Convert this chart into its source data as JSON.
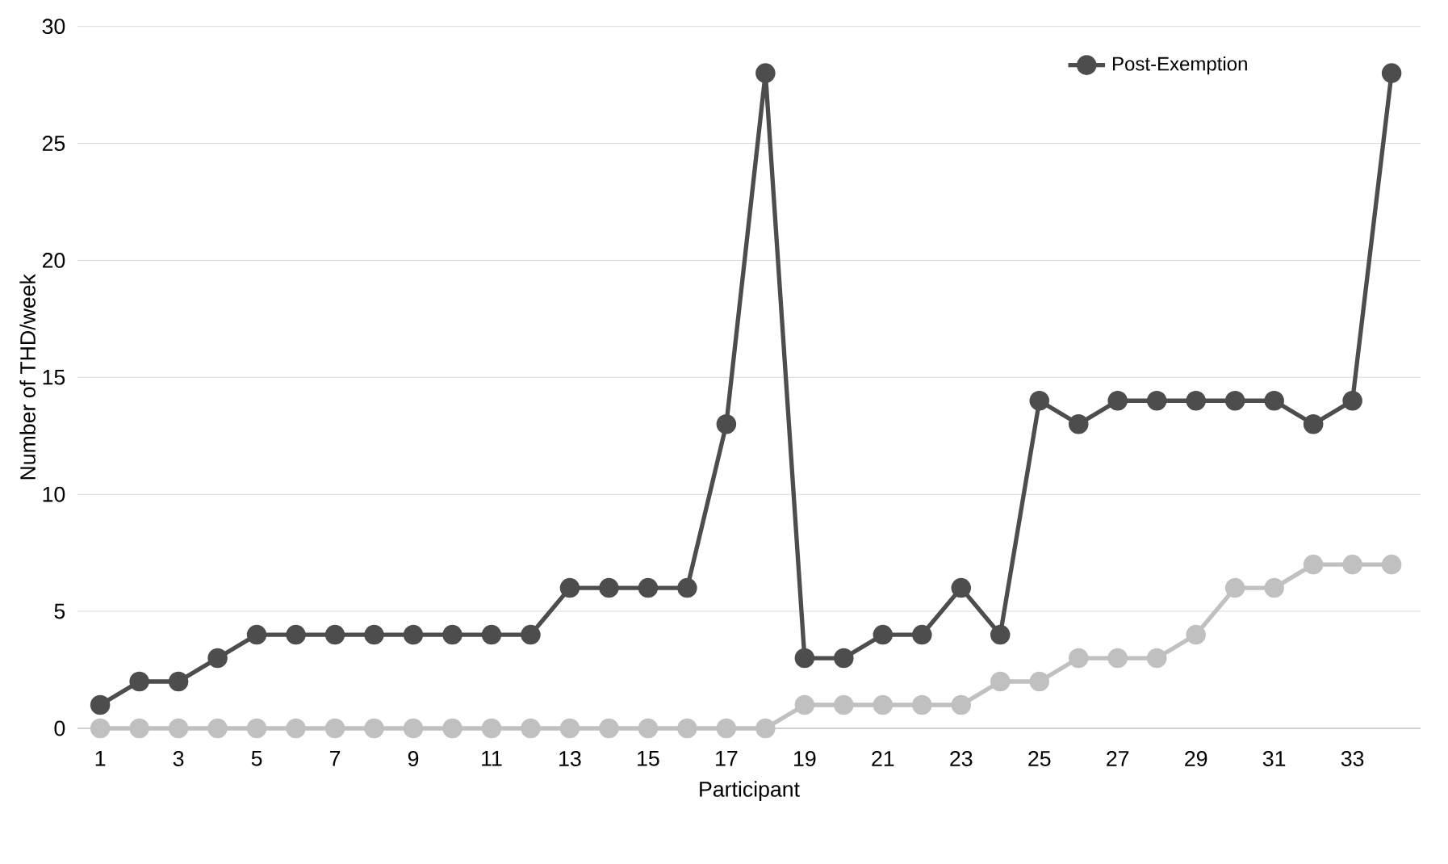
{
  "chart_data": {
    "type": "line",
    "xlabel": "Participant",
    "ylabel": "Number of THD/week",
    "categories": [
      "1",
      null,
      "3",
      null,
      "5",
      null,
      "7",
      null,
      "9",
      null,
      "11",
      null,
      "13",
      null,
      "15",
      null,
      "17",
      null,
      "19",
      null,
      "21",
      null,
      "23",
      null,
      "25",
      null,
      "27",
      null,
      "29",
      null,
      "31",
      null,
      "33",
      null
    ],
    "series": [
      {
        "name": "Post-Exemption",
        "color": "#4d4d4d",
        "values": [
          1,
          2,
          2,
          3,
          4,
          4,
          4,
          4,
          4,
          4,
          4,
          4,
          6,
          6,
          6,
          6,
          13,
          28,
          3,
          3,
          4,
          4,
          6,
          4,
          14,
          13,
          14,
          14,
          14,
          14,
          14,
          13,
          14,
          28
        ]
      },
      {
        "color": "#c0c0c0",
        "values": [
          0,
          0,
          0,
          0,
          0,
          0,
          0,
          0,
          0,
          0,
          0,
          0,
          0,
          0,
          0,
          0,
          0,
          0,
          1,
          1,
          1,
          1,
          1,
          2,
          2,
          3,
          3,
          3,
          4,
          6,
          6,
          7,
          7,
          7
        ]
      }
    ],
    "ylim": [
      0,
      30
    ],
    "yticks": [
      0,
      5,
      10,
      15,
      20,
      25,
      30
    ],
    "grid": "y",
    "legend": "top right",
    "marker": "circle",
    "line_style": "solid"
  }
}
